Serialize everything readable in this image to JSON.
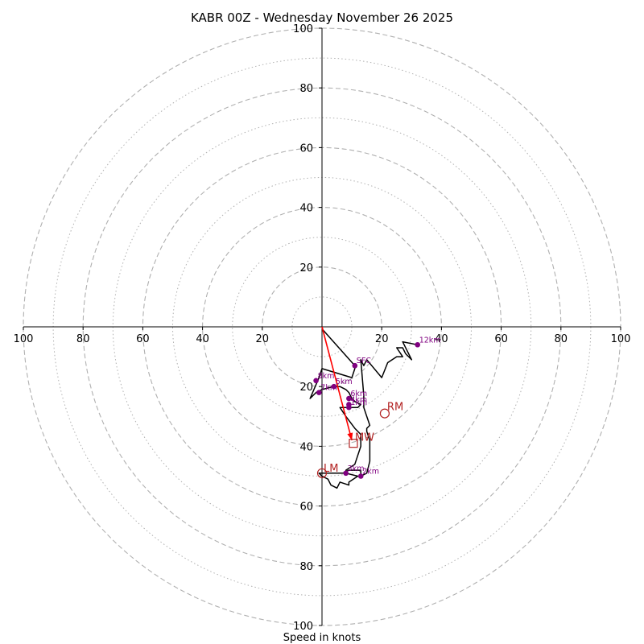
{
  "chart_data": {
    "type": "hodograph",
    "title": "KABR 00Z - Wednesday November 26 2025",
    "xlabel": "Speed in knots",
    "range_kts": 100,
    "ring_major_kts": [
      20,
      40,
      60,
      80,
      100
    ],
    "ring_minor_kts": [
      10,
      30,
      50,
      70,
      90
    ],
    "x_ticks": [
      "100",
      "80",
      "60",
      "40",
      "20",
      "20",
      "40",
      "60",
      "80",
      "100"
    ],
    "y_ticks": [
      "100",
      "80",
      "60",
      "40",
      "20",
      "20",
      "40",
      "60",
      "80",
      "100"
    ],
    "hodograph_line": [
      [
        0,
        0
      ],
      [
        0.3,
        -1
      ],
      [
        11,
        -13
      ],
      [
        11,
        -14
      ],
      [
        10,
        -17
      ],
      [
        0,
        -14
      ],
      [
        -1,
        -17
      ],
      [
        -4,
        -24
      ],
      [
        -2,
        -22
      ],
      [
        0,
        -21
      ],
      [
        4,
        -20
      ],
      [
        6,
        -20
      ],
      [
        8,
        -21
      ],
      [
        9,
        -22
      ],
      [
        10,
        -24
      ],
      [
        11,
        -25
      ],
      [
        13,
        -26
      ],
      [
        12,
        -27
      ],
      [
        7,
        -27
      ],
      [
        6,
        -27
      ],
      [
        8,
        -30
      ],
      [
        11,
        -34
      ],
      [
        13,
        -36
      ],
      [
        13,
        -40
      ],
      [
        11,
        -46
      ],
      [
        8,
        -48
      ],
      [
        8,
        -49
      ],
      [
        12,
        -50
      ],
      [
        9,
        -52
      ],
      [
        9,
        -53
      ],
      [
        6,
        -52
      ],
      [
        5,
        -54
      ],
      [
        3,
        -53
      ],
      [
        2,
        -51
      ],
      [
        0,
        -50
      ],
      [
        -1,
        -49
      ],
      [
        0,
        -49
      ],
      [
        4,
        -49
      ],
      [
        7,
        -49
      ],
      [
        9,
        -48
      ],
      [
        13,
        -48
      ],
      [
        13,
        -50
      ],
      [
        15,
        -49
      ],
      [
        16,
        -45
      ],
      [
        16,
        -38
      ],
      [
        15,
        -35
      ],
      [
        15,
        -34
      ],
      [
        16,
        -33
      ],
      [
        15,
        -30
      ],
      [
        14,
        -27
      ],
      [
        14,
        -23
      ],
      [
        13,
        -11
      ],
      [
        14,
        -13
      ],
      [
        15,
        -11
      ],
      [
        20,
        -17
      ],
      [
        22,
        -12
      ],
      [
        25,
        -10
      ],
      [
        27,
        -10
      ],
      [
        25,
        -7
      ],
      [
        27,
        -7
      ],
      [
        28,
        -9
      ],
      [
        30,
        -11
      ],
      [
        27,
        -5
      ],
      [
        32,
        -6
      ]
    ],
    "height_labels": [
      {
        "label": "SFC",
        "u": 11,
        "v": -13
      },
      {
        "label": "1km",
        "u": 9,
        "v": -27
      },
      {
        "label": "2km",
        "u": 13,
        "v": -50
      },
      {
        "label": "3km",
        "u": 8,
        "v": -49
      },
      {
        "label": "4km",
        "u": 9,
        "v": -26
      },
      {
        "label": "5km",
        "u": 4,
        "v": -20
      },
      {
        "label": "6km",
        "u": 9,
        "v": -24
      },
      {
        "label": "7km",
        "u": -1,
        "v": -22
      },
      {
        "label": "8km",
        "u": -2,
        "v": -18
      },
      {
        "label": "12km",
        "u": 32,
        "v": -6
      }
    ],
    "storm_motion": {
      "RM": {
        "label": "RM",
        "u": 21,
        "v": -29
      },
      "LM": {
        "label": "LM",
        "u": 0,
        "v": -49
      },
      "MW": {
        "label": "MW",
        "u": 10.5,
        "v": -39
      }
    },
    "mean_wind_vector": {
      "from": [
        0,
        0
      ],
      "to": [
        10,
        -38
      ]
    },
    "colors": {
      "hodo_line": "#000000",
      "height_marker": "#800080",
      "storm_motion": "#b22222",
      "mean_wind": "#ff0000",
      "grid": "#b0b0b0",
      "axis": "#000000"
    }
  }
}
